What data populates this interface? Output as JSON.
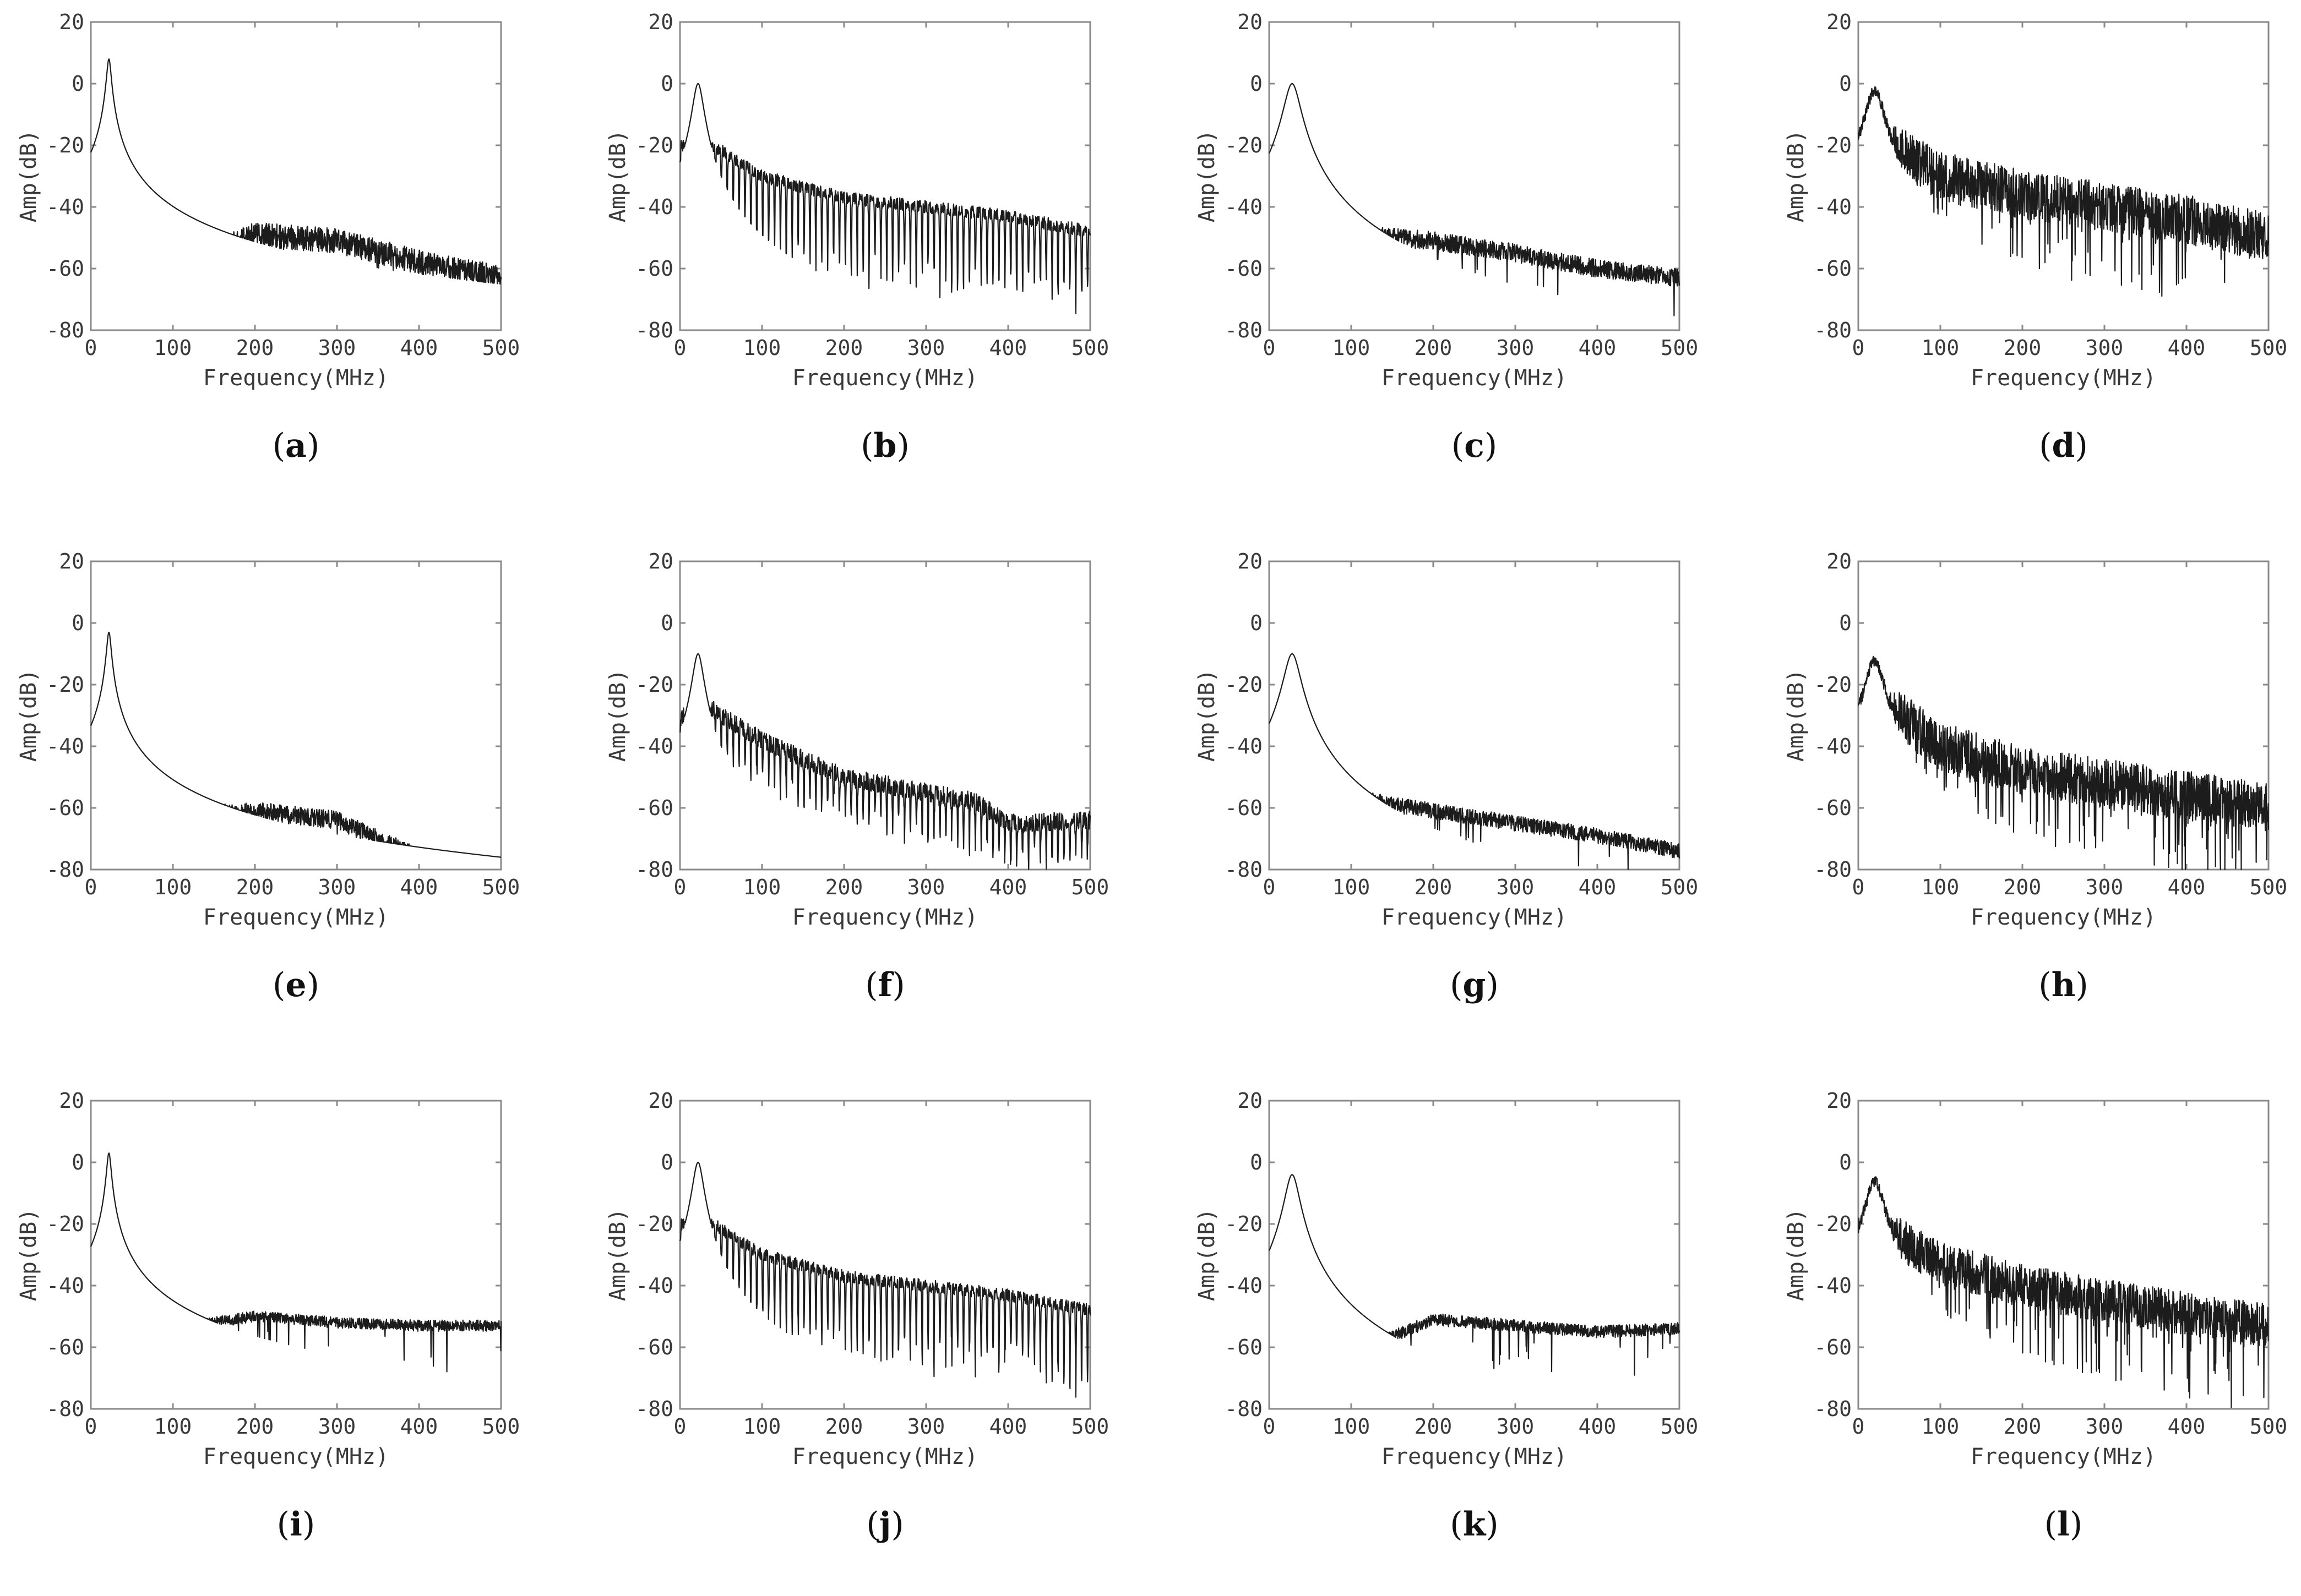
{
  "figure": {
    "axis_color": "#8a8a8a",
    "line_color": "#1c1c1c"
  },
  "chart_data": [
    {
      "id": "a",
      "caption": "a",
      "type": "line",
      "xlabel": "Frequency(MHz)",
      "ylabel": "Amp(dB)",
      "xlim": [
        0,
        500
      ],
      "ylim": [
        -80,
        20
      ],
      "xticks": [
        "0",
        "100",
        "200",
        "300",
        "400",
        "500"
      ],
      "yticks": [
        "20",
        "0",
        "-20",
        "-40",
        "-60",
        "-80"
      ],
      "shape": {
        "peak_freq": 22,
        "peak_db": 8,
        "peak_width": 2.5,
        "kind": "sharp",
        "baseline": [
          [
            0,
            -60
          ],
          [
            40,
            -50
          ],
          [
            80,
            -58
          ],
          [
            120,
            -58
          ],
          [
            200,
            -49
          ],
          [
            300,
            -51
          ],
          [
            400,
            -58
          ],
          [
            500,
            -63
          ]
        ],
        "noise": 4,
        "comb": 0,
        "seed": 11
      }
    },
    {
      "id": "b",
      "caption": "b",
      "type": "line",
      "xlabel": "Frequency(MHz)",
      "ylabel": "Amp(dB)",
      "xlim": [
        0,
        500
      ],
      "ylim": [
        -80,
        20
      ],
      "xticks": [
        "0",
        "100",
        "200",
        "300",
        "400",
        "500"
      ],
      "yticks": [
        "20",
        "0",
        "-20",
        "-40",
        "-60",
        "-80"
      ],
      "shape": {
        "peak_freq": 22,
        "peak_db": 0,
        "peak_width": 6,
        "kind": "comb",
        "baseline": [
          [
            0,
            -20
          ],
          [
            40,
            -20
          ],
          [
            100,
            -30
          ],
          [
            200,
            -37
          ],
          [
            300,
            -40
          ],
          [
            400,
            -43
          ],
          [
            500,
            -48
          ]
        ],
        "noise": 2,
        "comb": 28,
        "seed": 23
      }
    },
    {
      "id": "c",
      "caption": "c",
      "type": "line",
      "xlabel": "Frequency(MHz)",
      "ylabel": "Amp(dB)",
      "xlim": [
        0,
        500
      ],
      "ylim": [
        -80,
        20
      ],
      "xticks": [
        "0",
        "100",
        "200",
        "300",
        "400",
        "500"
      ],
      "yticks": [
        "20",
        "0",
        "-20",
        "-40",
        "-60",
        "-80"
      ],
      "shape": {
        "peak_freq": 28,
        "peak_db": 0,
        "peak_width": 9,
        "kind": "smooth",
        "baseline": [
          [
            0,
            -40
          ],
          [
            70,
            -48
          ],
          [
            200,
            -51
          ],
          [
            300,
            -55
          ],
          [
            400,
            -60
          ],
          [
            500,
            -63
          ]
        ],
        "noise": 3,
        "comb": 0,
        "seed": 37
      }
    },
    {
      "id": "d",
      "caption": "d",
      "type": "line",
      "xlabel": "Frequency(MHz)",
      "ylabel": "Amp(dB)",
      "xlim": [
        0,
        500
      ],
      "ylim": [
        -80,
        20
      ],
      "xticks": [
        "0",
        "100",
        "200",
        "300",
        "400",
        "500"
      ],
      "yticks": [
        "20",
        "0",
        "-20",
        "-40",
        "-60",
        "-80"
      ],
      "shape": {
        "peak_freq": 20,
        "peak_db": -2,
        "peak_width": 10,
        "kind": "noisy",
        "baseline": [
          [
            0,
            -22
          ],
          [
            50,
            -22
          ],
          [
            100,
            -30
          ],
          [
            200,
            -36
          ],
          [
            300,
            -40
          ],
          [
            400,
            -44
          ],
          [
            500,
            -50
          ]
        ],
        "noise": 8,
        "comb": 0,
        "seed": 41
      }
    },
    {
      "id": "e",
      "caption": "e",
      "type": "line",
      "xlabel": "Frequency(MHz)",
      "ylabel": "Amp(dB)",
      "xlim": [
        0,
        500
      ],
      "ylim": [
        -80,
        20
      ],
      "xticks": [
        "0",
        "100",
        "200",
        "300",
        "400",
        "500"
      ],
      "yticks": [
        "20",
        "0",
        "-20",
        "-40",
        "-60",
        "-80"
      ],
      "shape": {
        "peak_freq": 22,
        "peak_db": -3,
        "peak_width": 2.5,
        "kind": "sharp",
        "baseline": [
          [
            0,
            -62
          ],
          [
            40,
            -58
          ],
          [
            100,
            -63
          ],
          [
            200,
            -61
          ],
          [
            300,
            -64
          ],
          [
            400,
            -76
          ],
          [
            500,
            -80
          ]
        ],
        "noise": 3,
        "comb": 0,
        "seed": 53
      }
    },
    {
      "id": "f",
      "caption": "f",
      "type": "line",
      "xlabel": "Frequency(MHz)",
      "ylabel": "Amp(dB)",
      "xlim": [
        0,
        500
      ],
      "ylim": [
        -80,
        20
      ],
      "xticks": [
        "0",
        "100",
        "200",
        "300",
        "400",
        "500"
      ],
      "yticks": [
        "20",
        "0",
        "-20",
        "-40",
        "-60",
        "-80"
      ],
      "shape": {
        "peak_freq": 22,
        "peak_db": -10,
        "peak_width": 6,
        "kind": "comb",
        "baseline": [
          [
            0,
            -30
          ],
          [
            40,
            -28
          ],
          [
            100,
            -38
          ],
          [
            200,
            -50
          ],
          [
            300,
            -55
          ],
          [
            360,
            -58
          ],
          [
            400,
            -65
          ],
          [
            500,
            -64
          ]
        ],
        "noise": 3,
        "comb": 16,
        "seed": 67
      }
    },
    {
      "id": "g",
      "caption": "g",
      "type": "line",
      "xlabel": "Frequency(MHz)",
      "ylabel": "Amp(dB)",
      "xlim": [
        0,
        500
      ],
      "ylim": [
        -80,
        20
      ],
      "xticks": [
        "0",
        "100",
        "200",
        "300",
        "400",
        "500"
      ],
      "yticks": [
        "20",
        "0",
        "-20",
        "-40",
        "-60",
        "-80"
      ],
      "shape": {
        "peak_freq": 28,
        "peak_db": -10,
        "peak_width": 9,
        "kind": "smooth",
        "baseline": [
          [
            0,
            -48
          ],
          [
            70,
            -55
          ],
          [
            200,
            -61
          ],
          [
            300,
            -65
          ],
          [
            400,
            -69
          ],
          [
            500,
            -74
          ]
        ],
        "noise": 2.5,
        "comb": 0,
        "seed": 71
      }
    },
    {
      "id": "h",
      "caption": "h",
      "type": "line",
      "xlabel": "Frequency(MHz)",
      "ylabel": "Amp(dB)",
      "xlim": [
        0,
        500
      ],
      "ylim": [
        -80,
        20
      ],
      "xticks": [
        "0",
        "100",
        "200",
        "300",
        "400",
        "500"
      ],
      "yticks": [
        "20",
        "0",
        "-20",
        "-40",
        "-60",
        "-80"
      ],
      "shape": {
        "peak_freq": 20,
        "peak_db": -12,
        "peak_width": 10,
        "kind": "noisy",
        "baseline": [
          [
            0,
            -30
          ],
          [
            50,
            -30
          ],
          [
            100,
            -40
          ],
          [
            200,
            -48
          ],
          [
            300,
            -52
          ],
          [
            400,
            -56
          ],
          [
            500,
            -60
          ]
        ],
        "noise": 8,
        "comb": 0,
        "seed": 83
      }
    },
    {
      "id": "i",
      "caption": "i",
      "type": "line",
      "xlabel": "Frequency(MHz)",
      "ylabel": "Amp(dB)",
      "xlim": [
        0,
        500
      ],
      "ylim": [
        -80,
        20
      ],
      "xticks": [
        "0",
        "100",
        "200",
        "300",
        "400",
        "500"
      ],
      "yticks": [
        "20",
        "0",
        "-20",
        "-40",
        "-60",
        "-80"
      ],
      "shape": {
        "peak_freq": 22,
        "peak_db": 3,
        "peak_width": 2.5,
        "kind": "sharp",
        "baseline": [
          [
            0,
            -45
          ],
          [
            40,
            -45
          ],
          [
            100,
            -54
          ],
          [
            200,
            -50
          ],
          [
            300,
            -52
          ],
          [
            400,
            -53
          ],
          [
            500,
            -53
          ]
        ],
        "noise": 1.8,
        "comb": 0,
        "seed": 97
      }
    },
    {
      "id": "j",
      "caption": "j",
      "type": "line",
      "xlabel": "Frequency(MHz)",
      "ylabel": "Amp(dB)",
      "xlim": [
        0,
        500
      ],
      "ylim": [
        -80,
        20
      ],
      "xticks": [
        "0",
        "100",
        "200",
        "300",
        "400",
        "500"
      ],
      "yticks": [
        "20",
        "0",
        "-20",
        "-40",
        "-60",
        "-80"
      ],
      "shape": {
        "peak_freq": 22,
        "peak_db": 0,
        "peak_width": 6,
        "kind": "comb",
        "baseline": [
          [
            0,
            -20
          ],
          [
            40,
            -20
          ],
          [
            100,
            -30
          ],
          [
            200,
            -37
          ],
          [
            300,
            -40
          ],
          [
            400,
            -43
          ],
          [
            500,
            -48
          ]
        ],
        "noise": 2,
        "comb": 28,
        "seed": 101
      }
    },
    {
      "id": "k",
      "caption": "k",
      "type": "line",
      "xlabel": "Frequency(MHz)",
      "ylabel": "Amp(dB)",
      "xlim": [
        0,
        500
      ],
      "ylim": [
        -80,
        20
      ],
      "xticks": [
        "0",
        "100",
        "200",
        "300",
        "400",
        "500"
      ],
      "yticks": [
        "20",
        "0",
        "-20",
        "-40",
        "-60",
        "-80"
      ],
      "shape": {
        "peak_freq": 28,
        "peak_db": -4,
        "peak_width": 8,
        "kind": "smooth",
        "baseline": [
          [
            0,
            -48
          ],
          [
            60,
            -52
          ],
          [
            90,
            -72
          ],
          [
            120,
            -60
          ],
          [
            200,
            -51
          ],
          [
            300,
            -53
          ],
          [
            400,
            -55
          ],
          [
            500,
            -54
          ]
        ],
        "noise": 2,
        "comb": 0,
        "seed": 113
      }
    },
    {
      "id": "l",
      "caption": "l",
      "type": "line",
      "xlabel": "Frequency(MHz)",
      "ylabel": "Amp(dB)",
      "xlim": [
        0,
        500
      ],
      "ylim": [
        -80,
        20
      ],
      "xticks": [
        "0",
        "100",
        "200",
        "300",
        "400",
        "500"
      ],
      "yticks": [
        "20",
        "0",
        "-20",
        "-40",
        "-60",
        "-80"
      ],
      "shape": {
        "peak_freq": 20,
        "peak_db": -6,
        "peak_width": 10,
        "kind": "noisy",
        "baseline": [
          [
            0,
            -25
          ],
          [
            50,
            -25
          ],
          [
            100,
            -33
          ],
          [
            200,
            -40
          ],
          [
            300,
            -45
          ],
          [
            400,
            -49
          ],
          [
            500,
            -53
          ]
        ],
        "noise": 7,
        "comb": 0,
        "seed": 127
      }
    }
  ]
}
